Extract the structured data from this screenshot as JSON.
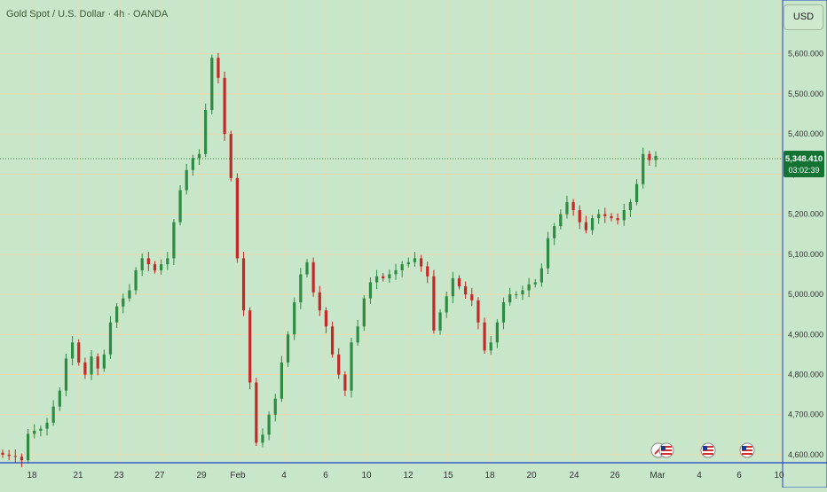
{
  "header": {
    "title": "Gold Spot / U.S. Dollar · 4h · OANDA",
    "currency_button": "USD"
  },
  "price_label": {
    "price": "5,348.410",
    "countdown": "03:02:39"
  },
  "colors": {
    "up": "#2e8b43",
    "down": "#c62828",
    "background": "#c8e6c9",
    "grid": "#e8d9b0",
    "axis": "#1f3fbf",
    "price_tag": "#137333"
  },
  "events": [
    {
      "icon": "flag-icon",
      "date": "Mar 2"
    },
    {
      "icon": "flag-icon",
      "date": "Mar 3"
    },
    {
      "icon": "flag-icon",
      "date": "Mar 5"
    }
  ],
  "chart_data": {
    "type": "candlestick",
    "title": "Gold Spot / U.S. Dollar · 4h · OANDA",
    "ylim": [
      4580,
      5690
    ],
    "y_ticks": [
      "5,600.000",
      "5,500.000",
      "5,400.000",
      "5,300.000",
      "5,200.000",
      "5,100.000",
      "5,000.000",
      "4,900.000",
      "4,800.000",
      "4,700.000",
      "4,600.000"
    ],
    "x_ticks": [
      "18",
      "21",
      "23",
      "27",
      "29",
      "Feb",
      "4",
      "6",
      "10",
      "12",
      "15",
      "18",
      "20",
      "24",
      "26",
      "Mar",
      "4",
      "6",
      "10"
    ],
    "last_price": 5348.41,
    "close_series": [
      4600,
      4597,
      4595,
      4586,
      4652,
      4660,
      4665,
      4680,
      4720,
      4760,
      4840,
      4880,
      4830,
      4800,
      4845,
      4815,
      4850,
      4930,
      4970,
      4990,
      5010,
      5060,
      5090,
      5075,
      5060,
      5075,
      5090,
      5180,
      5260,
      5310,
      5340,
      5350,
      5460,
      5590,
      5540,
      5400,
      5290,
      5090,
      4960,
      4780,
      4630,
      4650,
      4700,
      4740,
      4830,
      4900,
      4980,
      5050,
      5080,
      5005,
      4960,
      4920,
      4850,
      4800,
      4760,
      4880,
      4920,
      4990,
      5030,
      5045,
      5040,
      5050,
      5060,
      5075,
      5080,
      5090,
      5070,
      5045,
      4910,
      4955,
      4995,
      5040,
      5020,
      5000,
      4985,
      4930,
      4860,
      4880,
      4930,
      4980,
      5000,
      5000,
      5010,
      5025,
      5030,
      5065,
      5140,
      5170,
      5200,
      5230,
      5210,
      5180,
      5160,
      5190,
      5200,
      5195,
      5190,
      5185,
      5210,
      5230,
      5275,
      5350,
      5335,
      5345
    ],
    "last_candle_note": "latest candle closes near 5,348.410"
  }
}
